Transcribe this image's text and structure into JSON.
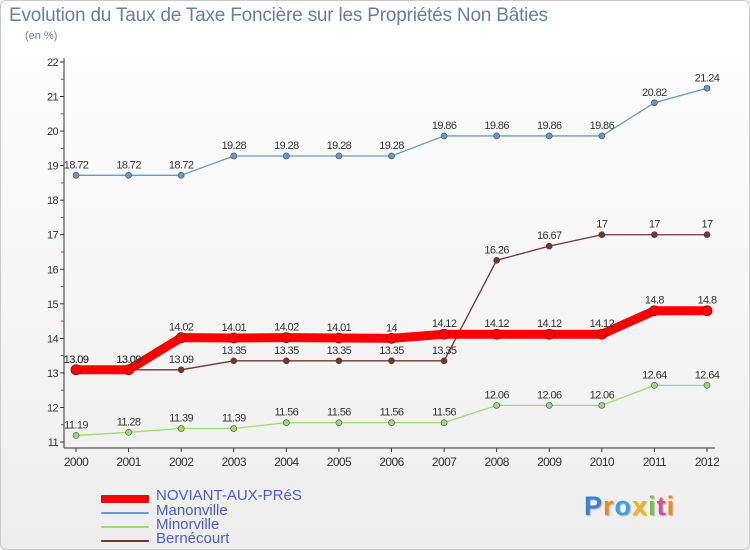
{
  "header": {
    "title": "Evolution du Taux de Taxe Foncière sur les Propriétés Non Bâties",
    "units": "(en %)"
  },
  "logo": {
    "text": "Proxiti"
  },
  "colors": {
    "noviant": "#ff0000",
    "manonville": "#6699cc",
    "minorville": "#99dd77",
    "bernecourt": "#773333",
    "axis": "#333333",
    "label": "#333333"
  },
  "chart_data": {
    "type": "line",
    "title": "Evolution du Taux de Taxe Foncière sur les Propriétés Non Bâties",
    "ylabel": "(en %)",
    "xlabel": "",
    "x": [
      "2000",
      "2001",
      "2002",
      "2003",
      "2004",
      "2005",
      "2006",
      "2007",
      "2008",
      "2009",
      "2010",
      "2011",
      "2012"
    ],
    "ylim": [
      11,
      22
    ],
    "yticks": [
      "11",
      "12",
      "13",
      "14",
      "15",
      "16",
      "17",
      "18",
      "19",
      "20",
      "21",
      "22"
    ],
    "legend_position": "bottom-left",
    "series": [
      {
        "name": "NOVIANT-AUX-PRéS",
        "color": "#ff0000",
        "width": "thick",
        "values": [
          13.09,
          13.09,
          14.02,
          14.01,
          14.02,
          14.01,
          14,
          14.12,
          14.12,
          14.12,
          14.12,
          14.8,
          14.8
        ],
        "labels": [
          "13.09",
          "13.09",
          "14.02",
          "14.01",
          "14.02",
          "14.01",
          "14",
          "14.12",
          "14.12",
          "14.12",
          "14.12",
          "14.8",
          "14.8"
        ]
      },
      {
        "name": "Manonville",
        "color": "#6699cc",
        "width": "thin",
        "values": [
          18.72,
          18.72,
          18.72,
          19.28,
          19.28,
          19.28,
          19.28,
          19.86,
          19.86,
          19.86,
          19.86,
          20.82,
          21.24
        ],
        "labels": [
          "18.72",
          "18.72",
          "18.72",
          "19.28",
          "19.28",
          "19.28",
          "19.28",
          "19.86",
          "19.86",
          "19.86",
          "19.86",
          "20.82",
          "21.24"
        ]
      },
      {
        "name": "Minorville",
        "color": "#99dd77",
        "width": "thin",
        "values": [
          11.19,
          11.28,
          11.39,
          11.39,
          11.56,
          11.56,
          11.56,
          11.56,
          12.06,
          12.06,
          12.06,
          12.64,
          12.64
        ],
        "labels": [
          "11.19",
          "11.28",
          "11.39",
          "11.39",
          "11.56",
          "11.56",
          "11.56",
          "11.56",
          "12.06",
          "12.06",
          "12.06",
          "12.64",
          "12.64"
        ]
      },
      {
        "name": "Bernécourt",
        "color": "#773333",
        "width": "thin",
        "values": [
          13.09,
          13.09,
          13.09,
          13.35,
          13.35,
          13.35,
          13.35,
          13.35,
          16.26,
          16.67,
          17,
          17,
          17
        ],
        "labels": [
          "13.09",
          "13.09",
          "13.09",
          "13.35",
          "13.35",
          "13.35",
          "13.35",
          "13.35",
          "16.26",
          "16.67",
          "17",
          "17",
          "17"
        ]
      }
    ]
  }
}
